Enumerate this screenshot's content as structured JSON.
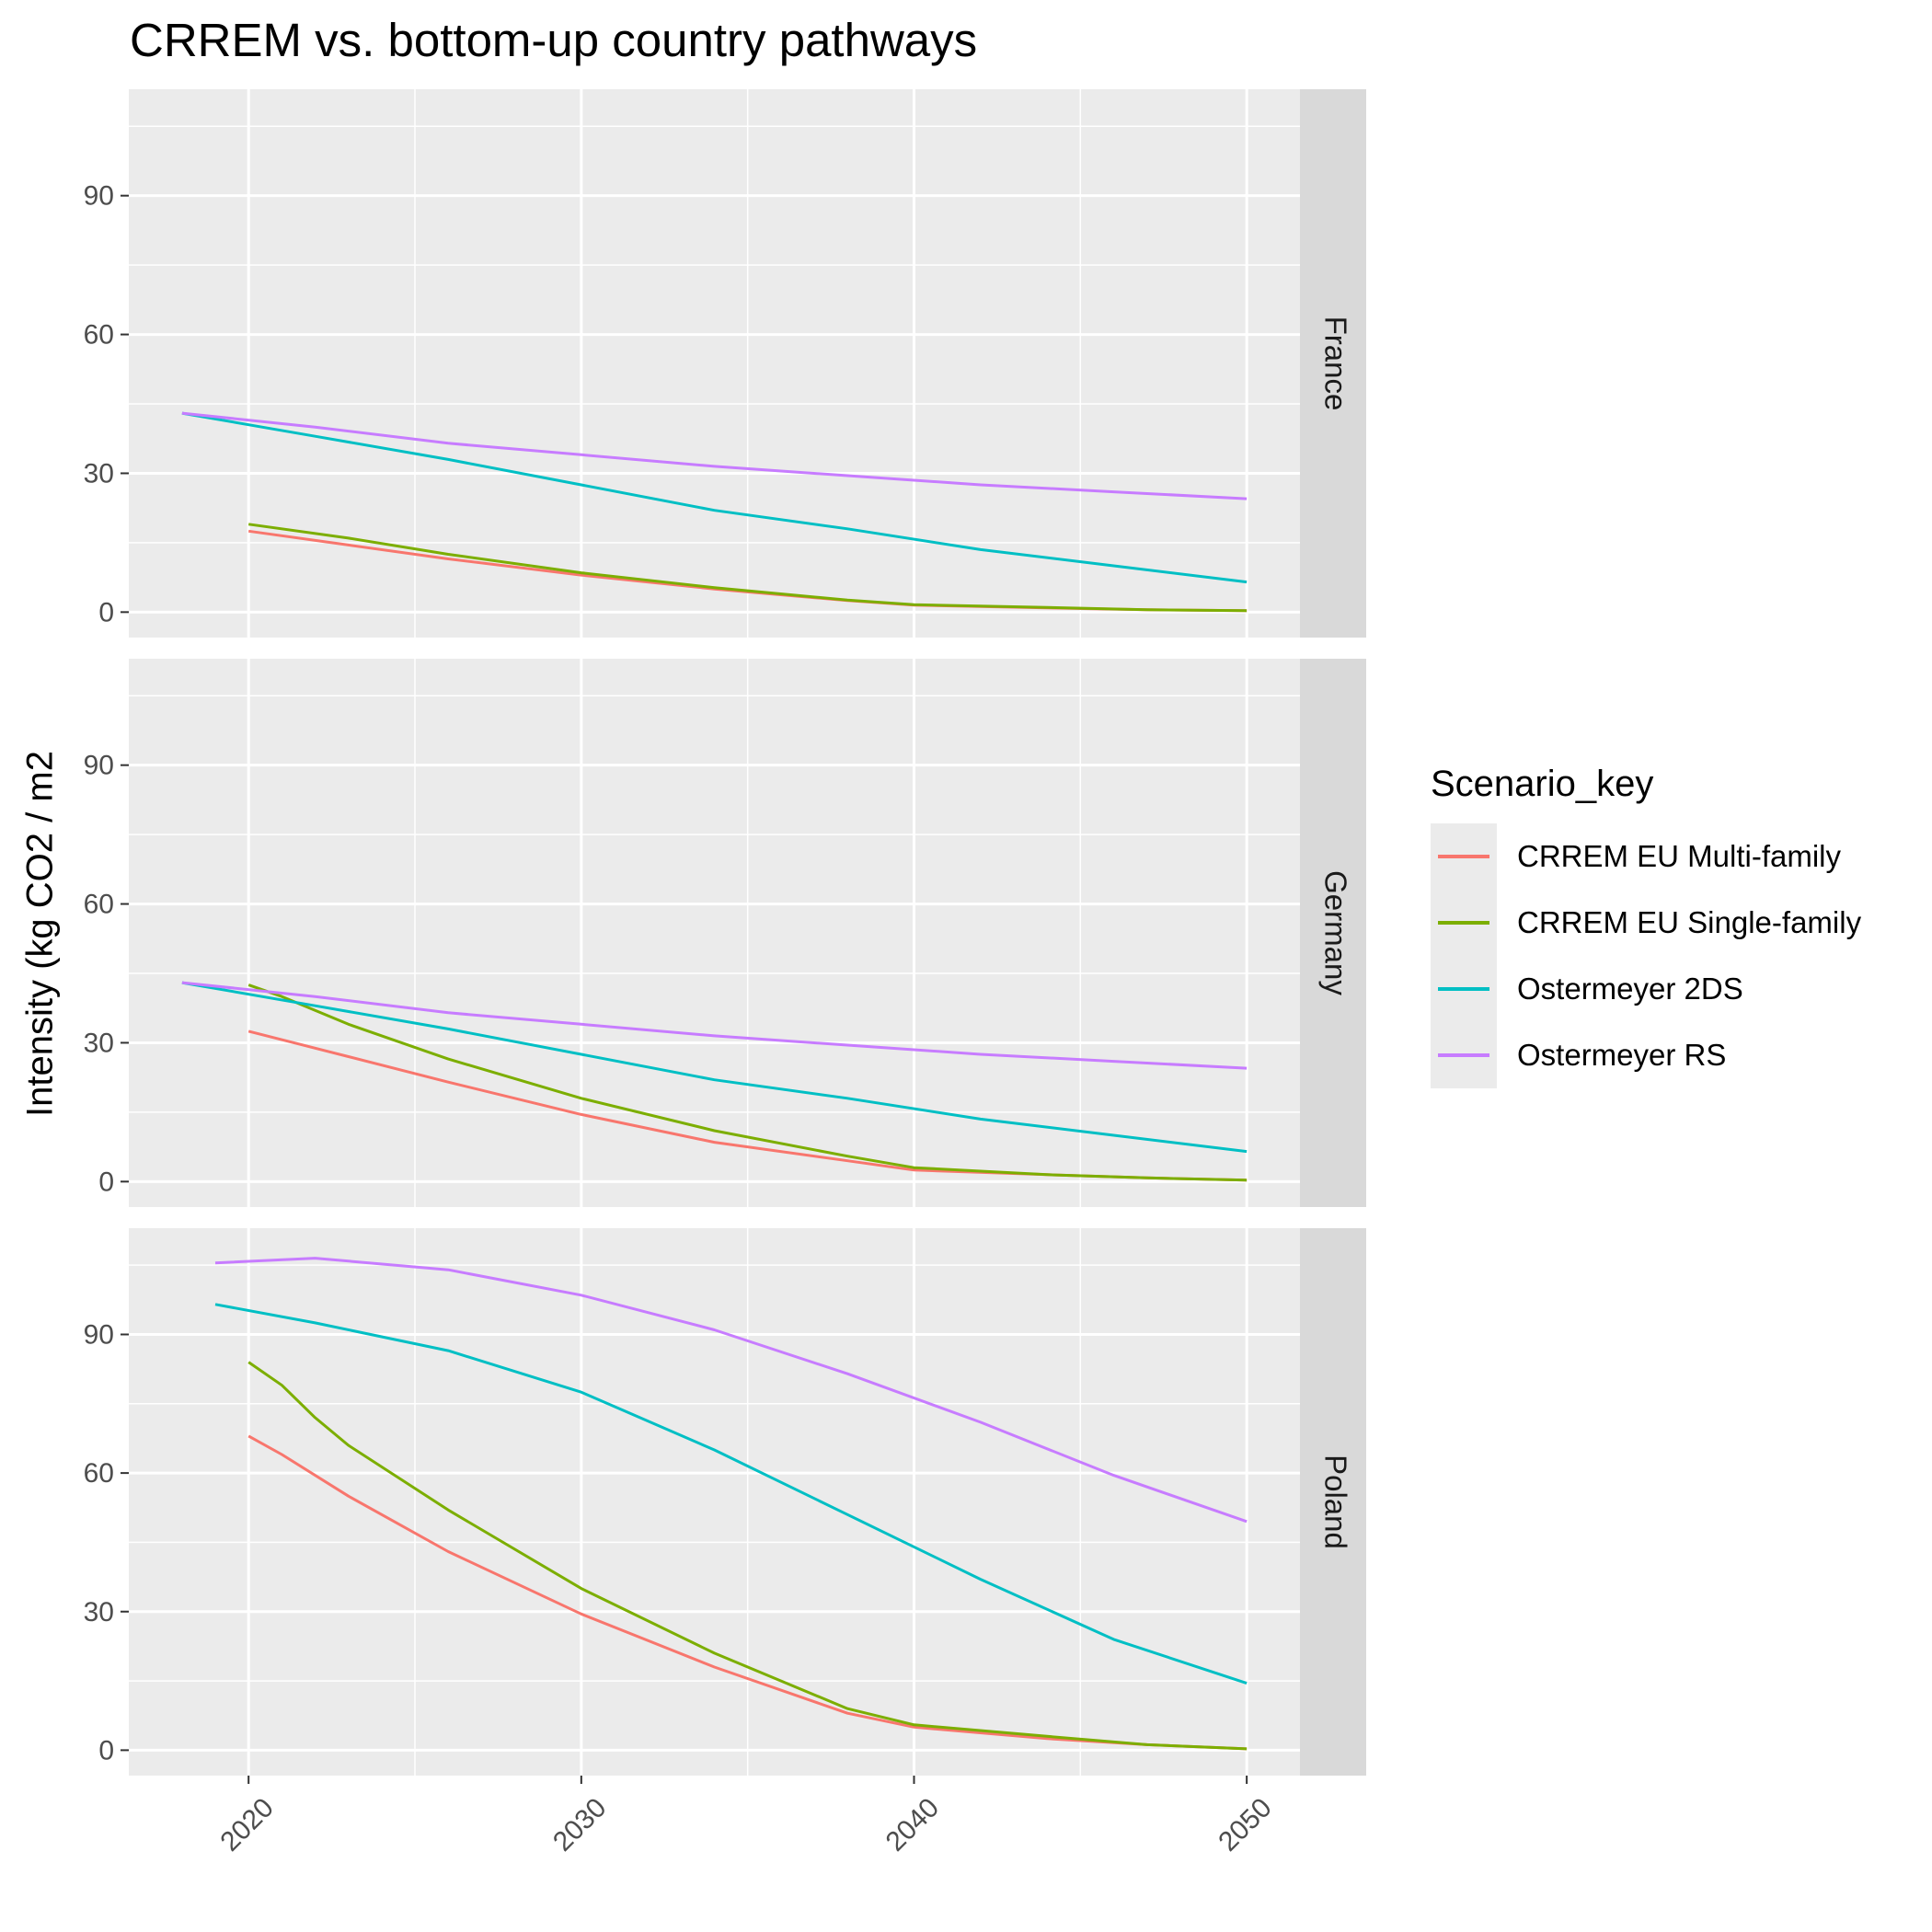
{
  "chart_data": {
    "type": "line",
    "title": "CRREM vs. bottom-up country pathways",
    "xlabel": "",
    "ylabel": "Intensity (kg CO2 / m2",
    "xlim": [
      2016.4,
      2051.6
    ],
    "ylim": [
      -5.5,
      113
    ],
    "x_ticks": [
      2020,
      2030,
      2040,
      2050
    ],
    "y_ticks": [
      0,
      30,
      60,
      90
    ],
    "grid": true,
    "legend": {
      "title": "Scenario_key",
      "position": "right"
    },
    "series_styles": [
      {
        "name": "CRREM EU Multi-family",
        "color": "#F8766D"
      },
      {
        "name": "CRREM EU Single-family",
        "color": "#7CAE00"
      },
      {
        "name": "Ostermeyer 2DS",
        "color": "#00BFC4"
      },
      {
        "name": "Ostermeyer RS",
        "color": "#C77CFF"
      }
    ],
    "facets": [
      {
        "name": "France",
        "series": [
          {
            "name": "CRREM EU Multi-family",
            "x": [
              2020,
              2023,
              2026,
              2030,
              2034,
              2038,
              2040,
              2044,
              2047,
              2050
            ],
            "y": [
              17.5,
              14.5,
              11.5,
              8,
              5,
              2.5,
              1.5,
              0.9,
              0.5,
              0.3
            ]
          },
          {
            "name": "CRREM EU Single-family",
            "x": [
              2020,
              2023,
              2026,
              2030,
              2034,
              2038,
              2040,
              2044,
              2047,
              2050
            ],
            "y": [
              19,
              16,
              12.5,
              8.5,
              5.3,
              2.6,
              1.6,
              1,
              0.5,
              0.3
            ]
          },
          {
            "name": "Ostermeyer 2DS",
            "x": [
              2018,
              2022,
              2026,
              2030,
              2034,
              2038,
              2042,
              2046,
              2050
            ],
            "y": [
              43,
              38,
              33,
              27.5,
              22,
              18,
              13.5,
              10,
              6.5
            ]
          },
          {
            "name": "Ostermeyer RS",
            "x": [
              2018,
              2022,
              2026,
              2030,
              2034,
              2038,
              2042,
              2046,
              2050
            ],
            "y": [
              43,
              40,
              36.5,
              34,
              31.5,
              29.5,
              27.5,
              26,
              24.5
            ]
          }
        ]
      },
      {
        "name": "Germany",
        "series": [
          {
            "name": "CRREM EU Multi-family",
            "x": [
              2020,
              2023,
              2026,
              2030,
              2034,
              2038,
              2040,
              2044,
              2047,
              2050
            ],
            "y": [
              32.5,
              27,
              21.5,
              14.5,
              8.5,
              4.5,
              2.5,
              1.5,
              0.8,
              0.3
            ]
          },
          {
            "name": "CRREM EU Single-family",
            "x": [
              2020,
              2021,
              2023,
              2026,
              2030,
              2034,
              2038,
              2040,
              2044,
              2047,
              2050
            ],
            "y": [
              42.5,
              40,
              34,
              26.5,
              18,
              11,
              5.5,
              3,
              1.5,
              0.8,
              0.3
            ]
          },
          {
            "name": "Ostermeyer 2DS",
            "x": [
              2018,
              2022,
              2026,
              2030,
              2034,
              2038,
              2042,
              2046,
              2050
            ],
            "y": [
              43,
              38,
              33,
              27.5,
              22,
              18,
              13.5,
              10,
              6.5
            ]
          },
          {
            "name": "Ostermeyer RS",
            "x": [
              2018,
              2022,
              2026,
              2030,
              2034,
              2038,
              2042,
              2046,
              2050
            ],
            "y": [
              43,
              40,
              36.5,
              34,
              31.5,
              29.5,
              27.5,
              26,
              24.5
            ]
          }
        ]
      },
      {
        "name": "Poland",
        "series": [
          {
            "name": "CRREM EU Multi-family",
            "x": [
              2020,
              2021,
              2023,
              2026,
              2030,
              2034,
              2038,
              2040,
              2044,
              2047,
              2050
            ],
            "y": [
              68,
              64,
              55,
              43,
              29.5,
              18,
              8,
              5,
              2.5,
              1.2,
              0.3
            ]
          },
          {
            "name": "CRREM EU Single-family",
            "x": [
              2020,
              2021,
              2022,
              2023,
              2026,
              2030,
              2034,
              2038,
              2040,
              2044,
              2047,
              2050
            ],
            "y": [
              84,
              79,
              72,
              66,
              52,
              35,
              21,
              9,
              5.5,
              3,
              1.2,
              0.3
            ]
          },
          {
            "name": "Ostermeyer 2DS",
            "x": [
              2019,
              2022,
              2026,
              2030,
              2034,
              2038,
              2042,
              2046,
              2050
            ],
            "y": [
              96.5,
              92.5,
              86.5,
              77.5,
              65,
              51,
              37,
              24,
              14.5
            ]
          },
          {
            "name": "Ostermeyer RS",
            "x": [
              2019,
              2022,
              2026,
              2030,
              2034,
              2038,
              2042,
              2046,
              2050
            ],
            "y": [
              105.5,
              106.5,
              104,
              98.5,
              91,
              81.5,
              71,
              59.5,
              49.5
            ]
          }
        ]
      }
    ]
  }
}
